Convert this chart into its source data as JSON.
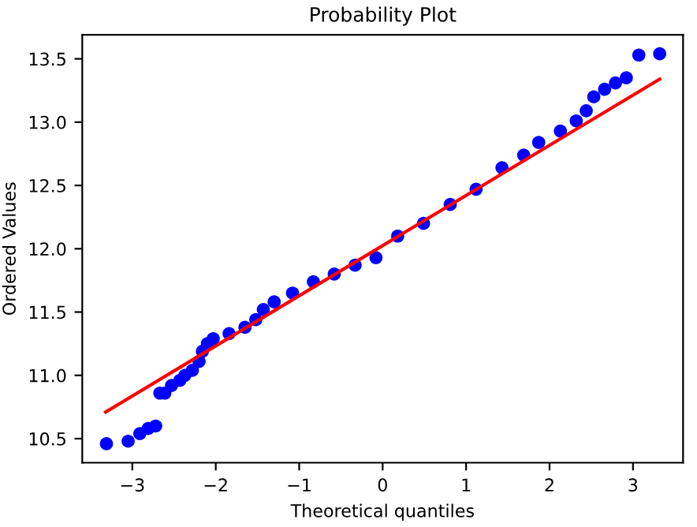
{
  "chart_data": {
    "type": "scatter",
    "title": "Probability Plot",
    "xlabel": "Theoretical quantiles",
    "ylabel": "Ordered Values",
    "series": [
      {
        "color": "#0000ff",
        "marker": "circle",
        "x": [
          -3.31,
          -3.05,
          -2.91,
          -2.81,
          -2.72,
          -2.67,
          -2.61,
          -2.53,
          -2.43,
          -2.37,
          -2.28,
          -2.2,
          -2.16,
          -2.1,
          -2.03,
          -1.84,
          -1.65,
          -1.52,
          -1.43,
          -1.3,
          -1.08,
          -0.83,
          -0.58,
          -0.33,
          -0.08,
          0.18,
          0.49,
          0.81,
          1.12,
          1.43,
          1.69,
          1.87,
          2.13,
          2.32,
          2.44,
          2.53,
          2.66,
          2.79,
          2.92,
          3.07,
          3.32
        ],
        "values": [
          10.46,
          10.48,
          10.54,
          10.58,
          10.6,
          10.86,
          10.86,
          10.92,
          10.96,
          11.0,
          11.04,
          11.11,
          11.19,
          11.25,
          11.29,
          11.33,
          11.38,
          11.44,
          11.52,
          11.58,
          11.65,
          11.74,
          11.8,
          11.87,
          11.93,
          12.1,
          12.2,
          12.35,
          12.47,
          12.64,
          12.74,
          12.84,
          12.93,
          13.01,
          13.09,
          13.2,
          13.26,
          13.31,
          13.35,
          13.53,
          13.54
        ]
      },
      {
        "type": "line",
        "color": "#ff0000",
        "marker": "none",
        "line_style": "solid",
        "x": [
          -3.32,
          3.32
        ],
        "values": [
          10.71,
          13.34
        ]
      }
    ],
    "xlim": [
      -3.6,
      3.6
    ],
    "ylim": [
      10.31,
      13.69
    ],
    "xticks": [
      {
        "value": -3,
        "label": "−3"
      },
      {
        "value": -2,
        "label": "−2"
      },
      {
        "value": -1,
        "label": "−1"
      },
      0,
      1,
      2,
      3
    ],
    "yticks": [
      10.5,
      {
        "value": 11,
        "label": "11.0"
      },
      11.5,
      {
        "value": 12,
        "label": "12.0"
      },
      12.5,
      {
        "value": 13,
        "label": "13.0"
      },
      13.5
    ],
    "grid": false,
    "legend": false
  }
}
